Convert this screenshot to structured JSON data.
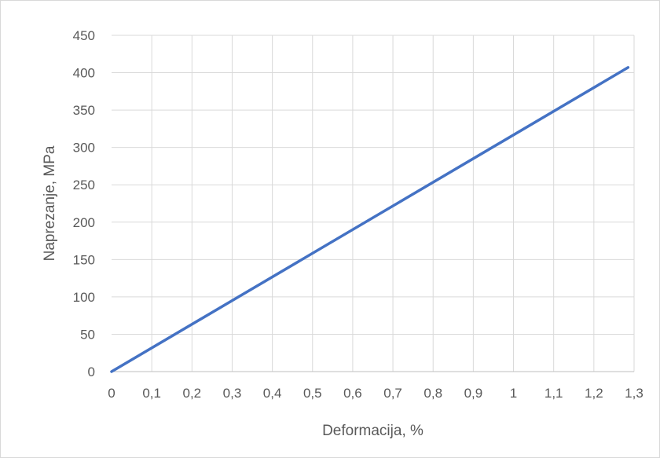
{
  "chart_data": {
    "type": "line",
    "title": "",
    "xlabel": "Deformacija, %",
    "ylabel": "Naprezanje, MPa",
    "xlim": [
      0,
      1.3
    ],
    "ylim": [
      0,
      450
    ],
    "x_ticks": [
      "0",
      "0,1",
      "0,2",
      "0,3",
      "0,4",
      "0,5",
      "0,6",
      "0,7",
      "0,8",
      "0,9",
      "1",
      "1,1",
      "1,2",
      "1,3"
    ],
    "y_ticks": [
      "0",
      "50",
      "100",
      "150",
      "200",
      "250",
      "300",
      "350",
      "400",
      "450"
    ],
    "grid": true,
    "legend": "none",
    "series": [
      {
        "x": [
          0,
          1.285
        ],
        "y": [
          0,
          407
        ],
        "color": "#4472c4"
      }
    ]
  }
}
